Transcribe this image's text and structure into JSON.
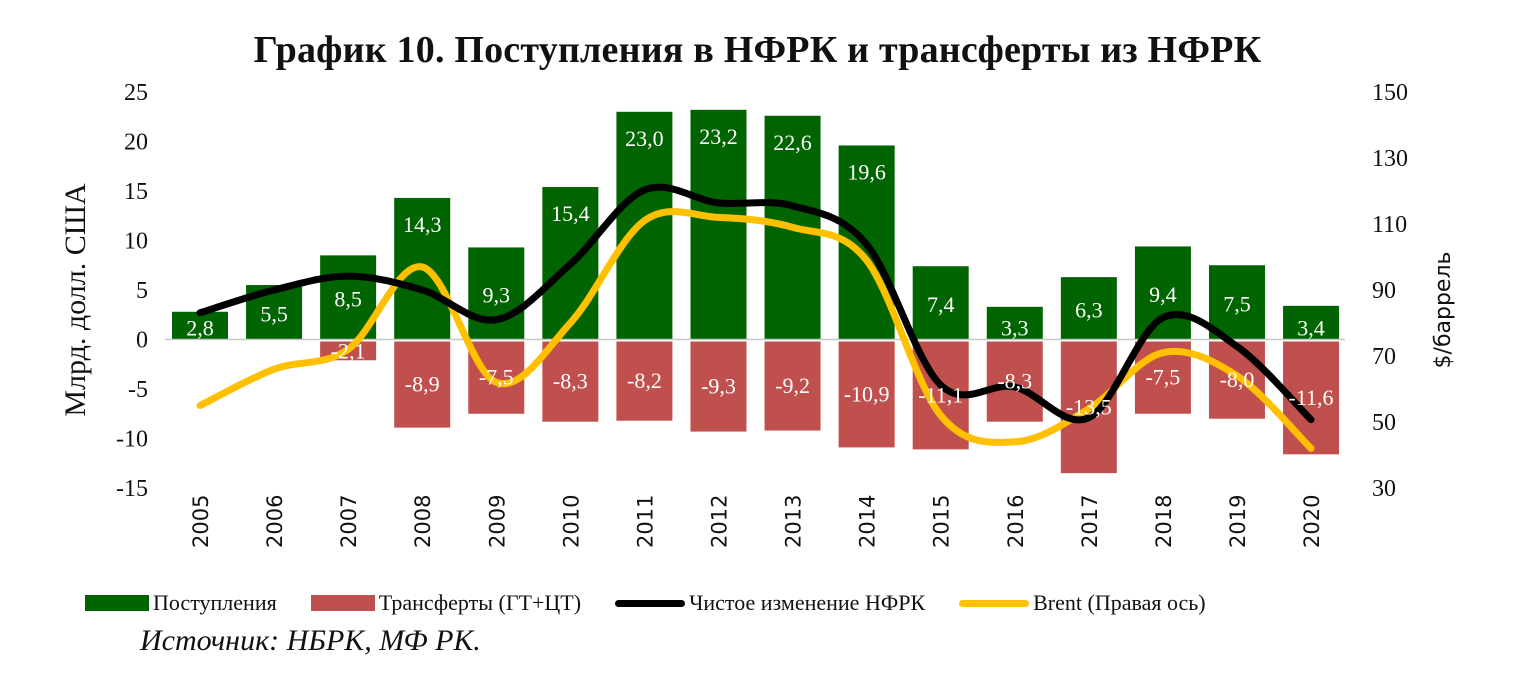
{
  "title": "График 10. Поступления в НФРК и трансферты из НФРК",
  "source": "Источник: НБРК, МФ РК.",
  "colors": {
    "inflows": "#006400",
    "transfers": "#c0504d",
    "net_change": "#000000",
    "brent": "#ffc000",
    "zero_line": "#c8c8c8",
    "inflow_label": "#ffffff",
    "transfer_label": "#ffffff"
  },
  "legend": [
    {
      "key": "inflows",
      "label": "Поступления",
      "type": "box"
    },
    {
      "key": "transfers",
      "label": "Трансферты (ГТ+ЦТ)",
      "type": "box"
    },
    {
      "key": "net_change",
      "label": "Чистое изменение НФРК",
      "type": "line"
    },
    {
      "key": "brent",
      "label": "Brent (Правая ось)",
      "type": "line"
    }
  ],
  "chart_data": {
    "type": "bar",
    "title": "График 10. Поступления в НФРК и трансферты из НФРК",
    "xlabel": "",
    "ylabel": "Млрд. долл. США",
    "y2label": "$/баррель",
    "ylim": [
      -15,
      25
    ],
    "yticks": [
      25,
      20,
      15,
      10,
      5,
      0,
      -5,
      -10,
      -15
    ],
    "y2lim": [
      30,
      150
    ],
    "y2ticks": [
      150,
      130,
      110,
      90,
      70,
      50,
      30
    ],
    "grid": false,
    "legend_position": "bottom",
    "categories": [
      "2005",
      "2006",
      "2007",
      "2008",
      "2009",
      "2010",
      "2011",
      "2012",
      "2013",
      "2014",
      "2015",
      "2016",
      "2017",
      "2018",
      "2019",
      "2020"
    ],
    "series": [
      {
        "name": "Поступления",
        "type": "bar",
        "axis": "left",
        "values": [
          2.8,
          5.5,
          8.5,
          14.3,
          9.3,
          15.4,
          23.0,
          23.2,
          22.6,
          19.6,
          7.4,
          3.3,
          6.3,
          9.4,
          7.5,
          3.4
        ],
        "labels": [
          "2,8",
          "5,5",
          "8,5",
          "14,3",
          "9,3",
          "15,4",
          "23,0",
          "23,2",
          "22,6",
          "19,6",
          "7,4",
          "3,3",
          "6,3",
          "9,4",
          "7,5",
          "3,4"
        ]
      },
      {
        "name": "Трансферты (ГТ+ЦТ)",
        "type": "bar",
        "axis": "left",
        "values": [
          0,
          0,
          -2.1,
          -8.9,
          -7.5,
          -8.3,
          -8.2,
          -9.3,
          -9.2,
          -10.9,
          -11.1,
          -8.3,
          -13.5,
          -7.5,
          -8.0,
          -11.6
        ],
        "labels": [
          "",
          "",
          "-2,1",
          "-8,9",
          "-7,5",
          "-8,3",
          "-8,2",
          "-9,3",
          "-9,2",
          "-10,9",
          "-11,1",
          "-8,3",
          "-13,5",
          "-7,5",
          "-8,0",
          "-11,6"
        ]
      },
      {
        "name": "Чистое изменение НФРК",
        "type": "line",
        "axis": "left",
        "smooth": true,
        "values": [
          2.7,
          5.0,
          6.4,
          5.0,
          2.0,
          7.6,
          15.1,
          13.8,
          13.5,
          9.6,
          -4.6,
          -4.8,
          -7.9,
          2.2,
          -0.7,
          -8.1
        ]
      },
      {
        "name": "Brent (Правая ось)",
        "type": "line",
        "axis": "right",
        "smooth": true,
        "values": [
          55,
          66,
          72,
          97,
          62,
          80,
          111,
          112,
          109,
          99,
          52,
          44,
          54,
          71,
          64,
          42
        ]
      }
    ]
  }
}
